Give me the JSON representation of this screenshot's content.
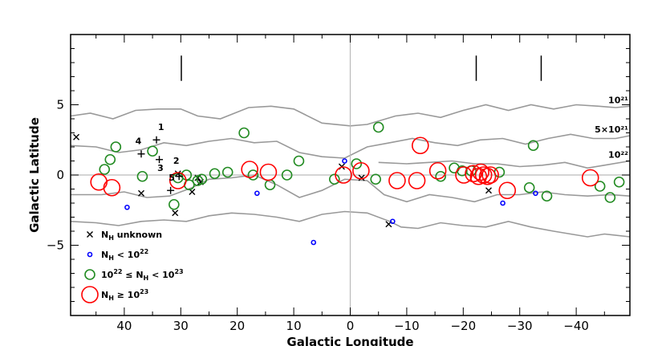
{
  "chart_data": {
    "type": "scatter",
    "xlabel": "Galactic Longitude",
    "ylabel": "Galactic Latitude",
    "xlim": [
      49.5,
      -49.5
    ],
    "ylim": [
      -10,
      10
    ],
    "x_ticks": [
      40,
      30,
      20,
      10,
      0,
      -10,
      -20,
      -30,
      -40
    ],
    "x_tick_labels": [
      "40",
      "30",
      "20",
      "10",
      "0",
      "−10",
      "−20",
      "−30",
      "−40"
    ],
    "y_ticks": [
      5,
      0,
      -5
    ],
    "y_tick_labels": [
      "5",
      "0",
      "−5"
    ],
    "colors": {
      "unknown": "#000000",
      "low": "#0000ff",
      "mid": "#228b22",
      "high": "#ff0000",
      "contour": "#999999",
      "zero_line": "#bbbbbb"
    },
    "vertical_markers": [
      {
        "x": 29.9,
        "y1": 8.5,
        "y2": 6.7
      },
      {
        "x": -22.3,
        "y1": 8.5,
        "y2": 6.7
      },
      {
        "x": -33.8,
        "y1": 8.5,
        "y2": 6.7
      }
    ],
    "contours": [
      {
        "label": "10²¹",
        "upper": true,
        "points": [
          [
            49.5,
            4.2
          ],
          [
            46,
            4.4
          ],
          [
            42,
            4.0
          ],
          [
            38,
            4.6
          ],
          [
            34,
            4.7
          ],
          [
            30,
            4.7
          ],
          [
            27,
            4.2
          ],
          [
            23,
            4.0
          ],
          [
            18,
            4.8
          ],
          [
            14,
            4.9
          ],
          [
            10,
            4.7
          ],
          [
            5,
            3.7
          ],
          [
            0,
            3.5
          ],
          [
            -3,
            3.6
          ],
          [
            -8,
            4.2
          ],
          [
            -12,
            4.4
          ],
          [
            -16,
            4.1
          ],
          [
            -20,
            4.6
          ],
          [
            -24,
            5.0
          ],
          [
            -28,
            4.6
          ],
          [
            -32,
            5.0
          ],
          [
            -36,
            4.7
          ],
          [
            -40,
            5.0
          ],
          [
            -44,
            4.9
          ],
          [
            -47,
            4.8
          ],
          [
            -49.5,
            4.9
          ]
        ]
      },
      {
        "label": "5×10²¹",
        "upper": true,
        "points": [
          [
            49.5,
            2.1
          ],
          [
            45,
            2.0
          ],
          [
            41,
            1.6
          ],
          [
            37,
            1.8
          ],
          [
            33,
            2.3
          ],
          [
            29,
            2.1
          ],
          [
            25,
            2.4
          ],
          [
            21,
            2.6
          ],
          [
            17,
            2.3
          ],
          [
            13,
            2.4
          ],
          [
            9,
            1.6
          ],
          [
            5,
            1.3
          ],
          [
            1,
            1.2
          ],
          [
            -3,
            2.0
          ],
          [
            -7,
            2.3
          ],
          [
            -11,
            2.6
          ],
          [
            -15,
            2.3
          ],
          [
            -19,
            2.1
          ],
          [
            -23,
            2.5
          ],
          [
            -27,
            2.6
          ],
          [
            -31,
            2.2
          ],
          [
            -35,
            2.6
          ],
          [
            -39,
            2.9
          ],
          [
            -43,
            2.6
          ],
          [
            -47,
            2.6
          ],
          [
            -49.5,
            2.8
          ]
        ]
      },
      {
        "label": "10²²",
        "upper": true,
        "points": [
          [
            -5,
            0.9
          ],
          [
            -10,
            0.8
          ],
          [
            -14,
            0.9
          ],
          [
            -18,
            1.0
          ],
          [
            -22,
            0.8
          ],
          [
            -26,
            0.8
          ],
          [
            -30,
            0.6
          ],
          [
            -34,
            0.7
          ],
          [
            -38,
            0.9
          ],
          [
            -42,
            0.5
          ],
          [
            -45,
            0.7
          ],
          [
            -49.5,
            1.0
          ]
        ]
      },
      {
        "label": "",
        "upper": false,
        "points": [
          [
            49.5,
            -1.4
          ],
          [
            44,
            -1.4
          ],
          [
            40,
            -1.2
          ],
          [
            36,
            -1.6
          ],
          [
            32,
            -1.5
          ],
          [
            28,
            -0.9
          ],
          [
            25,
            -0.3
          ],
          [
            21,
            -0.2
          ],
          [
            17,
            0.0
          ],
          [
            13,
            -0.7
          ],
          [
            9,
            -1.6
          ],
          [
            5,
            -1.1
          ],
          [
            1,
            -0.3
          ],
          [
            -3,
            -0.4
          ],
          [
            -6,
            -1.4
          ],
          [
            -10,
            -1.9
          ],
          [
            -14,
            -1.4
          ],
          [
            -18,
            -1.6
          ],
          [
            -22,
            -1.9
          ],
          [
            -26,
            -1.4
          ],
          [
            -30,
            -1.4
          ],
          [
            -34,
            -1.2
          ],
          [
            -38,
            -1.4
          ],
          [
            -42,
            -1.5
          ],
          [
            -46,
            -1.4
          ],
          [
            -49.5,
            -1.5
          ]
        ]
      },
      {
        "label": "",
        "upper": false,
        "points": [
          [
            49.5,
            -3.3
          ],
          [
            45,
            -3.4
          ],
          [
            41,
            -3.6
          ],
          [
            37,
            -3.3
          ],
          [
            33,
            -3.2
          ],
          [
            29,
            -3.3
          ],
          [
            25,
            -2.9
          ],
          [
            21,
            -2.7
          ],
          [
            17,
            -2.8
          ],
          [
            13,
            -3.0
          ],
          [
            9,
            -3.3
          ],
          [
            5,
            -2.8
          ],
          [
            1,
            -2.6
          ],
          [
            -3,
            -2.7
          ],
          [
            -7,
            -3.3
          ],
          [
            -9,
            -3.7
          ],
          [
            -12,
            -3.8
          ],
          [
            -16,
            -3.4
          ],
          [
            -20,
            -3.6
          ],
          [
            -24,
            -3.7
          ],
          [
            -28,
            -3.3
          ],
          [
            -32,
            -3.7
          ],
          [
            -36,
            -4.0
          ],
          [
            -39,
            -4.2
          ],
          [
            -42,
            -4.4
          ],
          [
            -45,
            -4.2
          ],
          [
            -49.5,
            -4.4
          ]
        ]
      }
    ],
    "series": [
      {
        "name": "N_H unknown",
        "marker": "x",
        "color": "#000000",
        "size": 3.5,
        "points": [
          [
            48.5,
            2.7
          ],
          [
            37,
            -1.3
          ],
          [
            31,
            -2.7
          ],
          [
            30.5,
            0.1
          ],
          [
            28,
            -1.2
          ],
          [
            27,
            -0.2
          ],
          [
            26.5,
            -0.5
          ],
          [
            1.5,
            0.6
          ],
          [
            -2,
            -0.2
          ],
          [
            -6.8,
            -3.5
          ],
          [
            -24.5,
            -1.1
          ]
        ]
      },
      {
        "name": "N_H < 10²²",
        "marker": "circle",
        "color": "#0000ff",
        "size": 2.5,
        "points": [
          [
            39.5,
            -2.3
          ],
          [
            16.5,
            -1.3
          ],
          [
            6.5,
            -4.8
          ],
          [
            1,
            1.0
          ],
          [
            -7.5,
            -3.3
          ],
          [
            -27,
            -2.0
          ],
          [
            -32.8,
            -1.3
          ]
        ]
      },
      {
        "name": "10²² ≤ N_H < 10²³",
        "marker": "circle",
        "color": "#228b22",
        "size": 6,
        "points": [
          [
            41.5,
            2.0
          ],
          [
            42.5,
            1.1
          ],
          [
            43.5,
            0.4
          ],
          [
            36.8,
            -0.1
          ],
          [
            35,
            1.7
          ],
          [
            31.2,
            -2.1
          ],
          [
            30.5,
            -0.2
          ],
          [
            29,
            0.0
          ],
          [
            28.5,
            -0.7
          ],
          [
            27,
            -0.4
          ],
          [
            26.3,
            -0.3
          ],
          [
            24,
            0.1
          ],
          [
            21.7,
            0.2
          ],
          [
            18.8,
            3.0
          ],
          [
            17.2,
            0.0
          ],
          [
            14.2,
            -0.7
          ],
          [
            11.2,
            0.0
          ],
          [
            9.1,
            1.0
          ],
          [
            2.8,
            -0.3
          ],
          [
            -1.1,
            0.8
          ],
          [
            -5,
            3.4
          ],
          [
            -4.5,
            -0.3
          ],
          [
            -16,
            -0.1
          ],
          [
            -18.4,
            0.5
          ],
          [
            -19.8,
            0.3
          ],
          [
            -21.4,
            0.3
          ],
          [
            -26.4,
            0.2
          ],
          [
            -31.7,
            -0.9
          ],
          [
            -32.4,
            2.1
          ],
          [
            -34.8,
            -1.5
          ],
          [
            -44.2,
            -0.8
          ],
          [
            -46,
            -1.6
          ],
          [
            -47.6,
            -0.5
          ]
        ]
      },
      {
        "name": "N_H ≥ 10²³",
        "marker": "circle",
        "color": "#ff0000",
        "size": 10,
        "points": [
          [
            44.5,
            -0.5
          ],
          [
            42.2,
            -0.9
          ],
          [
            30.5,
            -0.4
          ],
          [
            17.8,
            0.4
          ],
          [
            14.5,
            0.2
          ],
          [
            1.2,
            0.0
          ],
          [
            -1.9,
            0.3
          ],
          [
            -8.3,
            -0.4
          ],
          [
            -11.8,
            -0.4
          ],
          [
            -12.4,
            2.1
          ],
          [
            -15.5,
            0.3
          ],
          [
            -20.1,
            0.0
          ],
          [
            -21.8,
            0.1
          ],
          [
            -22.7,
            -0.1
          ],
          [
            -23.1,
            0.2
          ],
          [
            -23.6,
            0.0
          ],
          [
            -24.3,
            -0.1
          ],
          [
            -24.8,
            0.0
          ],
          [
            -27.8,
            -1.1
          ],
          [
            -42.5,
            -0.2
          ]
        ]
      },
      {
        "name": "",
        "marker": "plus",
        "color": "#000000",
        "size": 4.5,
        "points": [
          [
            34.3,
            2.5
          ],
          [
            37,
            1.5
          ],
          [
            33.8,
            1.1
          ],
          [
            31.8,
            -1.1
          ],
          [
            30.3,
            -0.1
          ]
        ]
      }
    ],
    "numbered_labels": [
      {
        "text": "1",
        "x": 33.5,
        "y": 3.2
      },
      {
        "text": "4",
        "x": 37.5,
        "y": 2.2
      },
      {
        "text": "3",
        "x": 33.6,
        "y": 0.3
      },
      {
        "text": "2",
        "x": 30.8,
        "y": 0.8
      },
      {
        "text": "5",
        "x": 31.6,
        "y": -0.4
      }
    ],
    "legend": {
      "placement": "bottom-left",
      "entries": [
        {
          "marker": "x",
          "color": "#000000",
          "size": 3.5,
          "base": "N",
          "sub": "H",
          "text": " unknown"
        },
        {
          "marker": "circle",
          "color": "#0000ff",
          "size": 2.5,
          "base": "N",
          "sub": "H",
          "text": " < 10",
          "sup": "22"
        },
        {
          "marker": "circle",
          "color": "#228b22",
          "size": 6,
          "pre": "10",
          "pre_sup": "22",
          "mid": " ≤ N",
          "sub": "H",
          "text": " < 10",
          "sup": "23"
        },
        {
          "marker": "circle",
          "color": "#ff0000",
          "size": 10,
          "base": "N",
          "sub": "H",
          "text": " ≥ 10",
          "sup": "23"
        }
      ]
    }
  }
}
